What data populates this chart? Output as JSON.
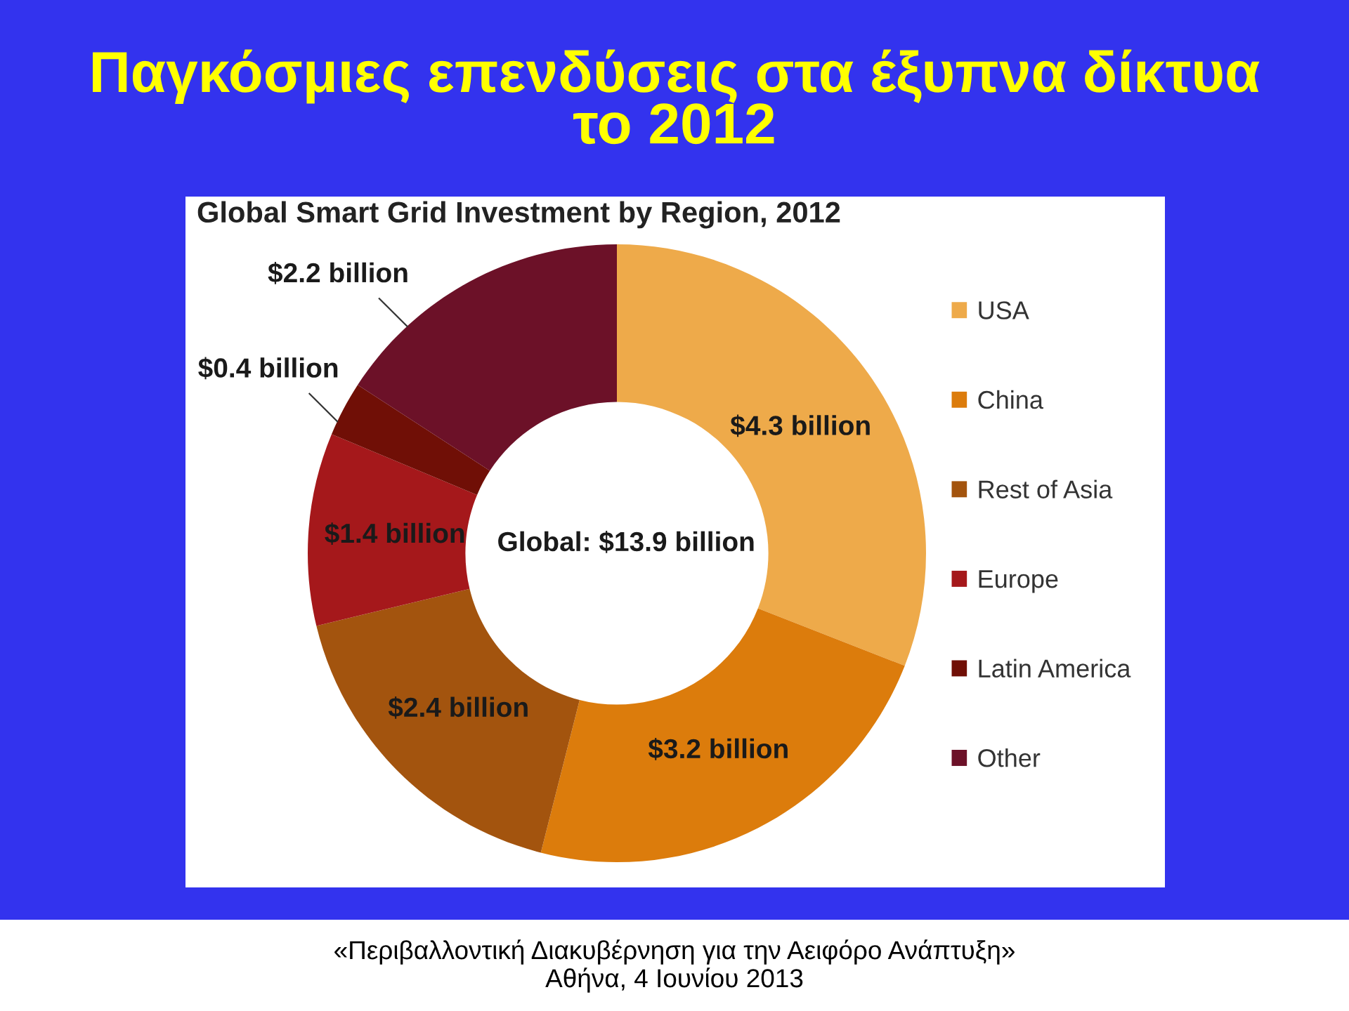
{
  "chart_data": {
    "type": "donut",
    "title": "Παγκόσμιες επενδύσεις στα έξυπνα δίκτυα\nτο 2012",
    "subtitle": "Global Smart Grid Investment by Region, 2012",
    "categories": [
      "USA",
      "China",
      "Rest of Asia",
      "Europe",
      "Latin America",
      "Other"
    ],
    "values": [
      4.3,
      3.2,
      2.4,
      1.4,
      0.4,
      2.2
    ],
    "colors": [
      "#eeaa4a",
      "#dc7c0c",
      "#a3540e",
      "#a5181b",
      "#700f06",
      "#6c1128"
    ],
    "value_labels": [
      "$4.3 billion",
      "$3.2 billion",
      "$2.4 billion",
      "$1.4 billion",
      "$0.4 billion",
      "$2.2 billion"
    ],
    "legend": "right",
    "annotations": [
      "Global: $13.9 billion",
      "«Περιβαλλοντική Διακυβέρνηση για την Αειφόρο Ανάπτυξη»",
      "Αθήνα, 4 Ιουνίου 2013"
    ]
  }
}
